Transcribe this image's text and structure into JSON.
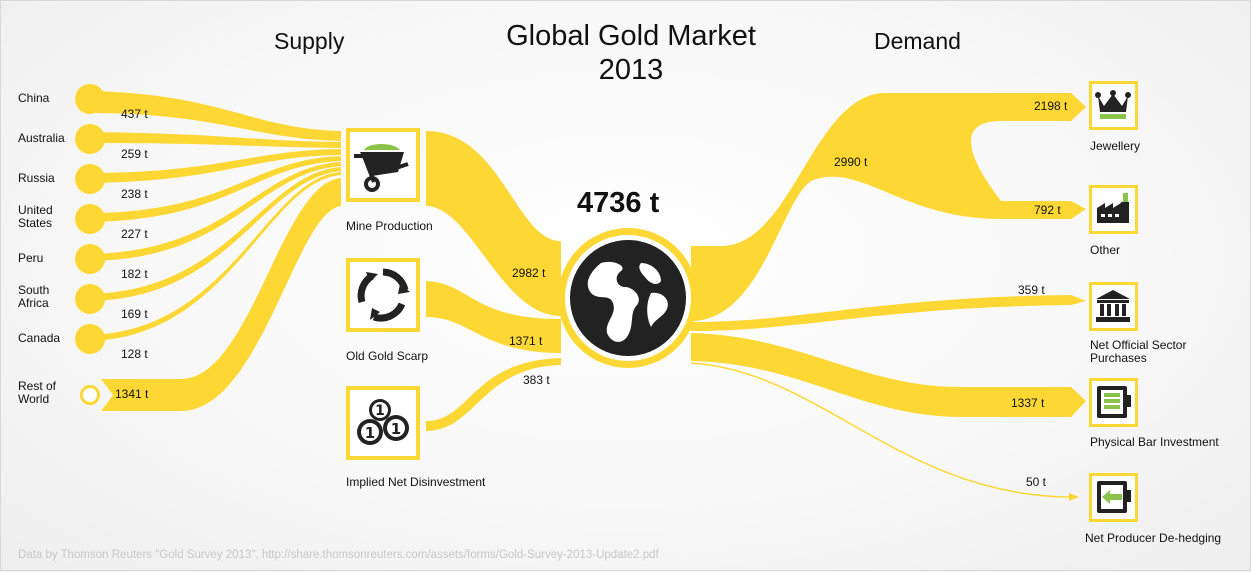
{
  "title_line1": "Global Gold Market",
  "title_line2": "2013",
  "supply_header": "Supply",
  "demand_header": "Demand",
  "total": "4736 t",
  "colors": {
    "flow": "#fdd835",
    "icon": "#222222",
    "accent": "#8bc34a"
  },
  "countries": [
    {
      "name": "China",
      "value": "437 t"
    },
    {
      "name": "Australia",
      "value": "259 t"
    },
    {
      "name": "Russia",
      "value": "238 t"
    },
    {
      "name_line1": "United",
      "name_line2": "States",
      "value": "227 t"
    },
    {
      "name": "Peru",
      "value": "182 t"
    },
    {
      "name_line1": "South",
      "name_line2": "Africa",
      "value": "169 t"
    },
    {
      "name": "Canada",
      "value": "128 t"
    },
    {
      "name_line1": "Rest of",
      "name_line2": "World",
      "value": "1341 t"
    }
  ],
  "supply_sources": [
    {
      "label": "Mine Production",
      "value": "2982 t",
      "icon": "wheelbarrow-icon"
    },
    {
      "label": "Old Gold Scarp",
      "value": "1371 t",
      "icon": "recycle-icon"
    },
    {
      "label": "Implied Net Disinvestment",
      "value": "383 t",
      "icon": "coins-icon"
    }
  ],
  "center_icon": "globe-icon",
  "jewellery_other_total": "2990 t",
  "demand": [
    {
      "label": "Jewellery",
      "value": "2198 t",
      "icon": "crown-icon"
    },
    {
      "label": "Other",
      "value": "792 t",
      "icon": "factory-icon"
    },
    {
      "label_line1": "Net Official Sector",
      "label_line2": "Purchases",
      "value": "359 t",
      "icon": "bank-icon"
    },
    {
      "label": "Physical Bar Investment",
      "value": "1337 t",
      "icon": "safe-icon"
    },
    {
      "label": "Net Producer De-hedging",
      "value": "50 t",
      "icon": "safe-arrow-icon"
    }
  ],
  "source_note": "Data by Thomson Reuters \"Gold Survey 2013\", http://share.thomsonreuters.com/assets/forms/Gold-Survey-2013-Update2.pdf"
}
